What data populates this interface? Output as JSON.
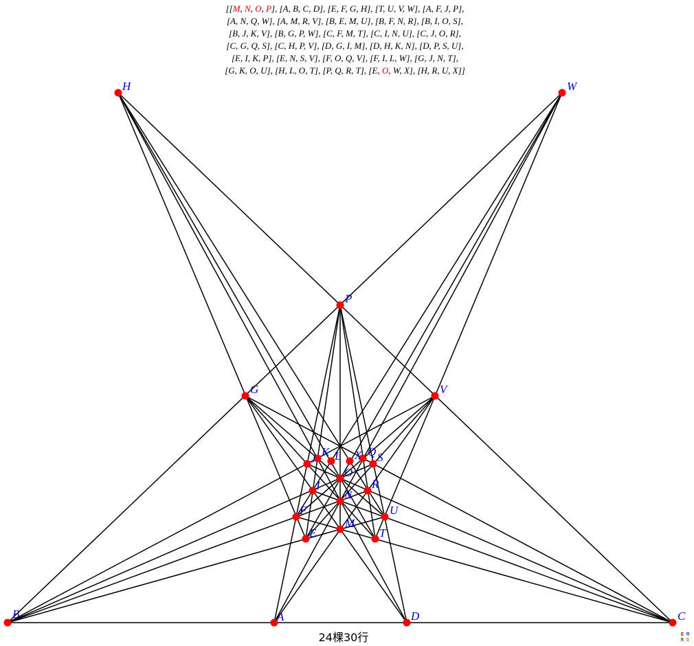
{
  "header": {
    "lines": [
      "[[M, N, O, P], [A, B, C, D], [E, F, G, H], [T, U, V, W], [A, F, J, P],",
      "[A, N, Q, W], [A, M, R, V], [B, E, M, U], [B, F, N, R], [B, I, O, S],",
      "[B, J, K, V], [B, G, P, W], [C, F, M, T], [C, I, N, U], [C, J, O, R],",
      "[C, G, Q, S], [C, H, P, V], [D, G, I, M], [D, H, K, N], [D, P, S, U],",
      "[E, I, K, P], [E, N, S, V], [F, O, Q, V], [F, I, L, W], [G, J, N, T],",
      "[G, K, O, U], [H, L, O, T], [P, Q, R, T], [E, O, W, X], [H, R, U, X]]"
    ],
    "highlight_color": "#e00000"
  },
  "points": [
    {
      "name": "H",
      "label": "H"
    },
    {
      "name": "W",
      "label": "W"
    },
    {
      "name": "P",
      "label": "P"
    },
    {
      "name": "G",
      "label": "G"
    },
    {
      "name": "V",
      "label": "V"
    },
    {
      "name": "J",
      "label": "J"
    },
    {
      "name": "K",
      "label": "K"
    },
    {
      "name": "L",
      "label": "L"
    },
    {
      "name": "X",
      "label": "X"
    },
    {
      "name": "Q",
      "label": "Q"
    },
    {
      "name": "S",
      "label": "S"
    },
    {
      "name": "O",
      "label": "O"
    },
    {
      "name": "I",
      "label": "I"
    },
    {
      "name": "R",
      "label": "R"
    },
    {
      "name": "N",
      "label": "N"
    },
    {
      "name": "F",
      "label": "F"
    },
    {
      "name": "U",
      "label": "U"
    },
    {
      "name": "E",
      "label": "E"
    },
    {
      "name": "M",
      "label": "M"
    },
    {
      "name": "T",
      "label": "T"
    },
    {
      "name": "B",
      "label": "B"
    },
    {
      "name": "A",
      "label": "A"
    },
    {
      "name": "D",
      "label": "D"
    },
    {
      "name": "C",
      "label": "C"
    }
  ],
  "lines": [
    [
      "M",
      "N",
      "O",
      "P"
    ],
    [
      "A",
      "B",
      "C",
      "D"
    ],
    [
      "E",
      "F",
      "G",
      "H"
    ],
    [
      "T",
      "U",
      "V",
      "W"
    ],
    [
      "A",
      "F",
      "J",
      "P"
    ],
    [
      "A",
      "N",
      "Q",
      "W"
    ],
    [
      "A",
      "M",
      "R",
      "V"
    ],
    [
      "B",
      "E",
      "M",
      "U"
    ],
    [
      "B",
      "F",
      "N",
      "R"
    ],
    [
      "B",
      "I",
      "O",
      "S"
    ],
    [
      "B",
      "J",
      "K",
      "V"
    ],
    [
      "B",
      "G",
      "P",
      "W"
    ],
    [
      "C",
      "F",
      "M",
      "T"
    ],
    [
      "C",
      "I",
      "N",
      "U"
    ],
    [
      "C",
      "J",
      "O",
      "R"
    ],
    [
      "C",
      "G",
      "Q",
      "S"
    ],
    [
      "C",
      "H",
      "P",
      "V"
    ],
    [
      "D",
      "G",
      "I",
      "M"
    ],
    [
      "D",
      "H",
      "K",
      "N"
    ],
    [
      "D",
      "P",
      "S",
      "U"
    ],
    [
      "E",
      "I",
      "K",
      "P"
    ],
    [
      "E",
      "N",
      "S",
      "V"
    ],
    [
      "F",
      "O",
      "Q",
      "V"
    ],
    [
      "F",
      "I",
      "L",
      "W"
    ],
    [
      "G",
      "J",
      "N",
      "T"
    ],
    [
      "G",
      "K",
      "O",
      "U"
    ],
    [
      "H",
      "L",
      "O",
      "T"
    ],
    [
      "P",
      "Q",
      "R",
      "T"
    ],
    [
      "E",
      "O",
      "W",
      "X"
    ],
    [
      "H",
      "R",
      "U",
      "X"
    ]
  ],
  "colors": {
    "point": "#ff0000",
    "label": "#0000cc",
    "line": "#000000"
  },
  "caption": "24棵30行",
  "corner_logo": [
    "E",
    "M",
    "R",
    "D"
  ]
}
